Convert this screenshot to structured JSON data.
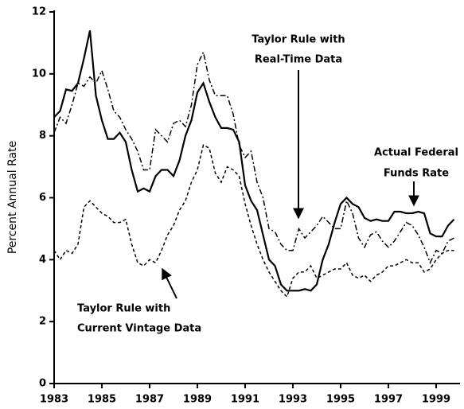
{
  "chart_data": {
    "type": "line",
    "y_label": "Percent Annual Rate",
    "xlim": [
      1983,
      2000
    ],
    "xticks": [
      1983,
      1985,
      1987,
      1989,
      1991,
      1993,
      1995,
      1997,
      1999
    ],
    "ylim": [
      0,
      12
    ],
    "yticks": [
      0,
      2,
      4,
      6,
      8,
      10,
      12
    ],
    "x": [
      1983,
      1983.25,
      1983.5,
      1983.75,
      1984,
      1984.25,
      1984.5,
      1984.75,
      1985,
      1985.25,
      1985.5,
      1985.75,
      1986,
      1986.25,
      1986.5,
      1986.75,
      1987,
      1987.25,
      1987.5,
      1987.75,
      1988,
      1988.25,
      1988.5,
      1988.75,
      1989,
      1989.25,
      1989.5,
      1989.75,
      1990,
      1990.25,
      1990.5,
      1990.75,
      1991,
      1991.25,
      1991.5,
      1991.75,
      1992,
      1992.25,
      1992.5,
      1992.75,
      1993,
      1993.25,
      1993.5,
      1993.75,
      1994,
      1994.25,
      1994.5,
      1994.75,
      1995,
      1995.25,
      1995.5,
      1995.75,
      1996,
      1996.25,
      1996.5,
      1996.75,
      1997,
      1997.25,
      1997.5,
      1997.75,
      1998,
      1998.25,
      1998.5,
      1998.75,
      1999,
      1999.25,
      1999.5,
      1999.75
    ],
    "series": [
      {
        "color": "#000000",
        "dash": "solid",
        "values": [
          8.6,
          8.8,
          9.5,
          9.45,
          9.7,
          10.5,
          11.4,
          9.3,
          8.5,
          7.9,
          7.9,
          8.1,
          7.8,
          6.9,
          6.2,
          6.3,
          6.2,
          6.7,
          6.9,
          6.9,
          6.7,
          7.2,
          8.0,
          8.5,
          9.4,
          9.7,
          9.1,
          8.6,
          8.25,
          8.25,
          8.2,
          7.8,
          6.4,
          5.9,
          5.6,
          4.8,
          4.0,
          3.8,
          3.2,
          3.0,
          3.0,
          3.0,
          3.05,
          3.0,
          3.2,
          4.0,
          4.5,
          5.2,
          5.8,
          6.0,
          5.8,
          5.7,
          5.35,
          5.25,
          5.3,
          5.25,
          5.25,
          5.55,
          5.55,
          5.5,
          5.5,
          5.55,
          5.5,
          4.85,
          4.75,
          4.75,
          5.1,
          5.3
        ]
      },
      {
        "color": "#000000",
        "dash": "dash-dot",
        "values": [
          8.1,
          8.6,
          8.4,
          9.0,
          9.7,
          9.6,
          9.9,
          9.7,
          10.1,
          9.5,
          8.8,
          8.6,
          8.2,
          7.9,
          7.5,
          6.9,
          6.9,
          8.2,
          8.0,
          7.8,
          8.4,
          8.5,
          8.3,
          9.0,
          10.3,
          10.7,
          9.8,
          9.3,
          9.3,
          9.3,
          8.7,
          7.7,
          7.3,
          7.5,
          6.5,
          6.0,
          5.0,
          4.9,
          4.5,
          4.3,
          4.3,
          5.0,
          4.7,
          4.9,
          5.1,
          5.4,
          5.2,
          5.0,
          5.0,
          5.9,
          5.5,
          4.7,
          4.4,
          4.8,
          4.9,
          4.6,
          4.4,
          4.6,
          4.9,
          5.2,
          5.1,
          4.8,
          4.4,
          3.9,
          4.3,
          4.2,
          4.6,
          4.7
        ]
      },
      {
        "color": "#000000",
        "dash": "dashed",
        "values": [
          4.3,
          4.0,
          4.3,
          4.2,
          4.5,
          5.7,
          5.9,
          5.7,
          5.5,
          5.4,
          5.2,
          5.2,
          5.3,
          4.5,
          3.9,
          3.8,
          4.0,
          3.9,
          4.3,
          4.8,
          5.1,
          5.6,
          5.9,
          6.5,
          6.9,
          7.7,
          7.6,
          6.8,
          6.5,
          7.0,
          6.9,
          6.7,
          5.8,
          5.1,
          4.5,
          4.0,
          3.6,
          3.3,
          3.0,
          2.8,
          3.4,
          3.6,
          3.6,
          3.8,
          3.4,
          3.5,
          3.6,
          3.7,
          3.7,
          3.9,
          3.5,
          3.4,
          3.5,
          3.3,
          3.5,
          3.6,
          3.8,
          3.8,
          3.9,
          4.0,
          3.9,
          3.9,
          3.6,
          3.7,
          4.0,
          4.2,
          4.3,
          4.3
        ]
      }
    ],
    "annotations": [
      {
        "lines": [
          "Taylor Rule with",
          "Real-Time Data"
        ]
      },
      {
        "lines": [
          "Actual Federal",
          "Funds Rate"
        ]
      },
      {
        "lines": [
          "Taylor Rule with",
          "Current Vintage Data"
        ]
      }
    ]
  }
}
